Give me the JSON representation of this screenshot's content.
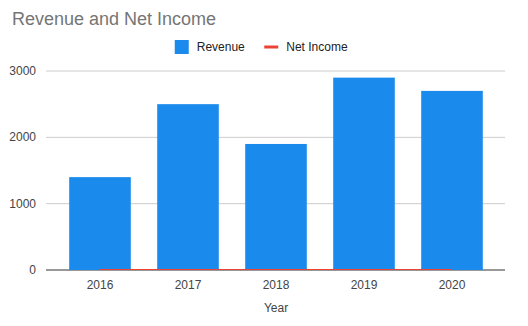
{
  "chart_data": {
    "type": "bar",
    "title": "Revenue and Net Income",
    "x_label": "Year",
    "categories": [
      "2016",
      "2017",
      "2018",
      "2019",
      "2020"
    ],
    "series": [
      {
        "name": "Revenue",
        "type": "bar",
        "color": "#1a8aec",
        "values": [
          1400,
          2500,
          1900,
          2900,
          2700
        ]
      },
      {
        "name": "Net Income",
        "type": "line",
        "color": "#ea4335",
        "values": [
          0,
          0,
          0,
          0,
          0
        ]
      }
    ],
    "ylim": [
      0,
      3000
    ],
    "yticks": [
      0,
      1000,
      2000,
      3000
    ],
    "grid": true,
    "legend": "top"
  }
}
